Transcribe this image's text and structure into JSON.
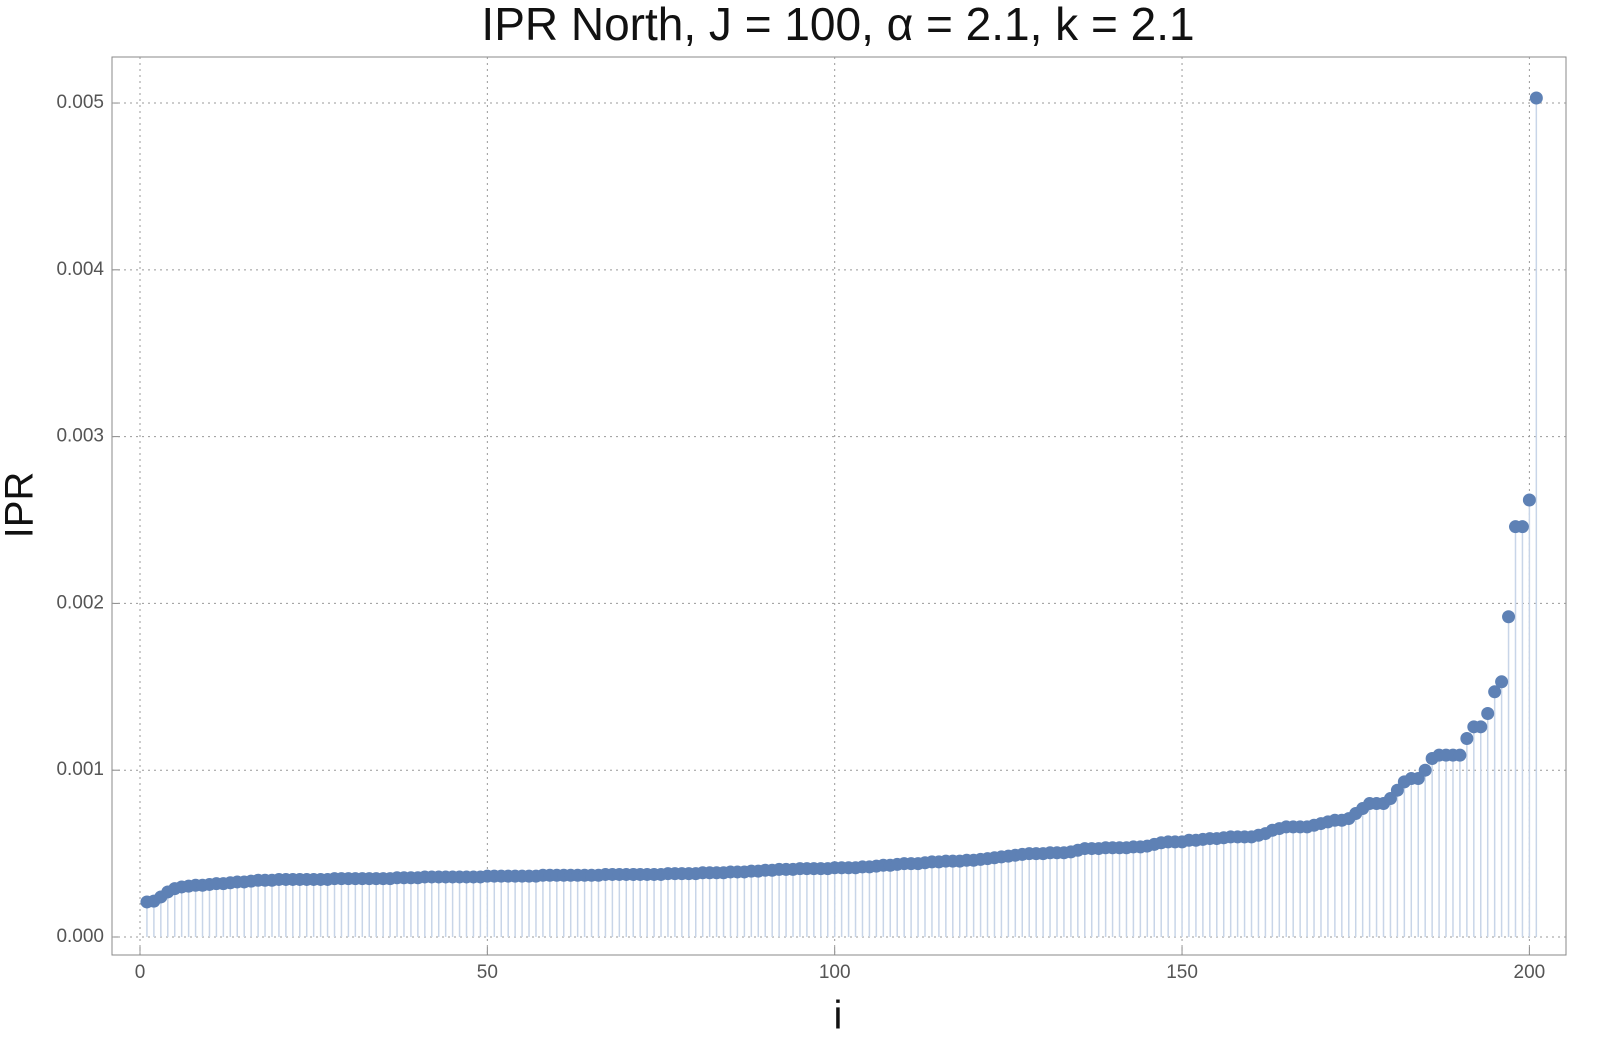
{
  "chart_data": {
    "type": "stem",
    "title": "IPR North, J = 100, α = 2.1, k = 2.1",
    "x_label": "i",
    "y_label": "IPR",
    "color": "#5e81b5",
    "stem_color": "#c8d5e8",
    "grid": true,
    "xlim": [
      -4.03,
      205.27
    ],
    "ylim": [
      -0.000108,
      0.005276
    ],
    "xticks": [
      0,
      50,
      100,
      150,
      200
    ],
    "yticks": [
      {
        "value": 0,
        "label": "0.000"
      },
      {
        "value": 0.001,
        "label": "0.001"
      },
      {
        "value": 0.002,
        "label": "0.002"
      },
      {
        "value": 0.003,
        "label": "0.003"
      },
      {
        "value": 0.004,
        "label": "0.004"
      },
      {
        "value": 0.005,
        "label": "0.005"
      }
    ],
    "x": [
      1,
      2,
      3,
      4,
      5,
      6,
      7,
      8,
      9,
      10,
      11,
      12,
      13,
      14,
      15,
      16,
      17,
      18,
      19,
      20,
      21,
      22,
      23,
      24,
      25,
      26,
      27,
      28,
      29,
      30,
      31,
      32,
      33,
      34,
      35,
      36,
      37,
      38,
      39,
      40,
      41,
      42,
      43,
      44,
      45,
      46,
      47,
      48,
      49,
      50,
      51,
      52,
      53,
      54,
      55,
      56,
      57,
      58,
      59,
      60,
      61,
      62,
      63,
      64,
      65,
      66,
      67,
      68,
      69,
      70,
      71,
      72,
      73,
      74,
      75,
      76,
      77,
      78,
      79,
      80,
      81,
      82,
      83,
      84,
      85,
      86,
      87,
      88,
      89,
      90,
      91,
      92,
      93,
      94,
      95,
      96,
      97,
      98,
      99,
      100,
      101,
      102,
      103,
      104,
      105,
      106,
      107,
      108,
      109,
      110,
      111,
      112,
      113,
      114,
      115,
      116,
      117,
      118,
      119,
      120,
      121,
      122,
      123,
      124,
      125,
      126,
      127,
      128,
      129,
      130,
      131,
      132,
      133,
      134,
      135,
      136,
      137,
      138,
      139,
      140,
      141,
      142,
      143,
      144,
      145,
      146,
      147,
      148,
      149,
      150,
      151,
      152,
      153,
      154,
      155,
      156,
      157,
      158,
      159,
      160,
      161,
      162,
      163,
      164,
      165,
      166,
      167,
      168,
      169,
      170,
      171,
      172,
      173,
      174,
      175,
      176,
      177,
      178,
      179,
      180,
      181,
      182,
      183,
      184,
      185,
      186,
      187,
      188,
      189,
      190,
      191,
      192,
      193,
      194,
      195,
      196,
      197,
      198,
      199,
      200,
      201
    ],
    "values": [
      0.00021,
      0.000215,
      0.00024,
      0.00027,
      0.00029,
      0.0003,
      0.000305,
      0.00031,
      0.00031,
      0.000315,
      0.00032,
      0.00032,
      0.000325,
      0.00033,
      0.00033,
      0.000335,
      0.00034,
      0.00034,
      0.00034,
      0.000345,
      0.000345,
      0.000345,
      0.000345,
      0.000345,
      0.000345,
      0.000345,
      0.000345,
      0.00035,
      0.00035,
      0.00035,
      0.00035,
      0.00035,
      0.00035,
      0.00035,
      0.00035,
      0.00035,
      0.000355,
      0.000355,
      0.000355,
      0.000355,
      0.00036,
      0.00036,
      0.00036,
      0.00036,
      0.00036,
      0.00036,
      0.00036,
      0.00036,
      0.00036,
      0.000365,
      0.000365,
      0.000365,
      0.000365,
      0.000365,
      0.000365,
      0.000365,
      0.000365,
      0.00037,
      0.00037,
      0.00037,
      0.00037,
      0.00037,
      0.00037,
      0.00037,
      0.00037,
      0.00037,
      0.000375,
      0.000375,
      0.000375,
      0.000375,
      0.000375,
      0.000375,
      0.000375,
      0.000375,
      0.000375,
      0.00038,
      0.00038,
      0.00038,
      0.00038,
      0.00038,
      0.000385,
      0.000385,
      0.000385,
      0.000385,
      0.00039,
      0.00039,
      0.00039,
      0.000395,
      0.000395,
      0.0004,
      0.0004,
      0.000405,
      0.000405,
      0.000405,
      0.00041,
      0.00041,
      0.00041,
      0.00041,
      0.00041,
      0.000415,
      0.000415,
      0.000415,
      0.000415,
      0.00042,
      0.00042,
      0.000425,
      0.00043,
      0.00043,
      0.000435,
      0.00044,
      0.00044,
      0.00044,
      0.000445,
      0.00045,
      0.00045,
      0.000455,
      0.000455,
      0.000455,
      0.00046,
      0.00046,
      0.000465,
      0.00047,
      0.000475,
      0.00048,
      0.000485,
      0.00049,
      0.000495,
      0.0005,
      0.0005,
      0.0005,
      0.000505,
      0.000505,
      0.000505,
      0.00051,
      0.00052,
      0.00053,
      0.00053,
      0.00053,
      0.000535,
      0.000535,
      0.000535,
      0.000535,
      0.00054,
      0.00054,
      0.000545,
      0.000555,
      0.000565,
      0.00057,
      0.00057,
      0.00057,
      0.00058,
      0.00058,
      0.000585,
      0.00059,
      0.00059,
      0.000595,
      0.0006,
      0.0006,
      0.0006,
      0.0006,
      0.00061,
      0.00062,
      0.00064,
      0.00065,
      0.00066,
      0.00066,
      0.00066,
      0.00066,
      0.00067,
      0.00068,
      0.00069,
      0.0007,
      0.0007,
      0.00071,
      0.00074,
      0.00077,
      0.0008,
      0.0008,
      0.0008,
      0.00083,
      0.00088,
      0.00093,
      0.00095,
      0.00095,
      0.001,
      0.00107,
      0.00109,
      0.00109,
      0.00109,
      0.00109,
      0.00119,
      0.00126,
      0.00126,
      0.00134,
      0.00147,
      0.00153,
      0.00192,
      0.00246,
      0.00246,
      0.00262,
      0.00503
    ]
  }
}
